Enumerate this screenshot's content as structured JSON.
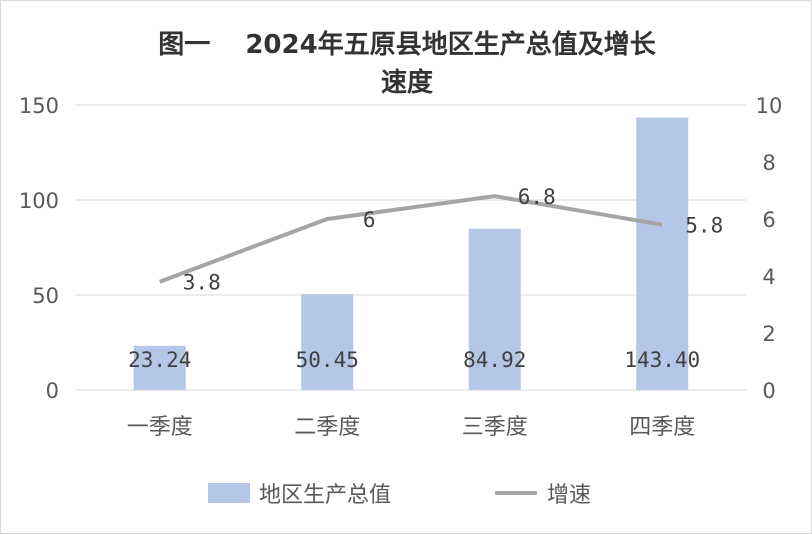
{
  "chart_data": {
    "type": "bar+line",
    "title_line1": "图一　 2024年五原县地区生产总值及增长",
    "title_line2": "速度",
    "categories": [
      "一季度",
      "二季度",
      "三季度",
      "四季度"
    ],
    "series": [
      {
        "name": "地区生产总值",
        "type": "bar",
        "axis": "left",
        "color": "#b4c7e7",
        "values": [
          23.24,
          50.45,
          84.92,
          143.4
        ],
        "labels": [
          "23.24",
          "50.45",
          "84.92",
          "143.40"
        ]
      },
      {
        "name": "增速",
        "type": "line",
        "axis": "right",
        "color": "#a5a5a5",
        "values": [
          3.8,
          6,
          6.8,
          5.8
        ],
        "labels": [
          "3.8",
          "6",
          "6.8",
          "5.8"
        ]
      }
    ],
    "y_left": {
      "range": [
        0,
        150
      ],
      "ticks": [
        "0",
        "50",
        "100",
        "150"
      ]
    },
    "y_right": {
      "range": [
        0,
        10
      ],
      "ticks": [
        "0",
        "2",
        "4",
        "6",
        "8",
        "10"
      ]
    },
    "grid": true,
    "legend": "bottom"
  }
}
